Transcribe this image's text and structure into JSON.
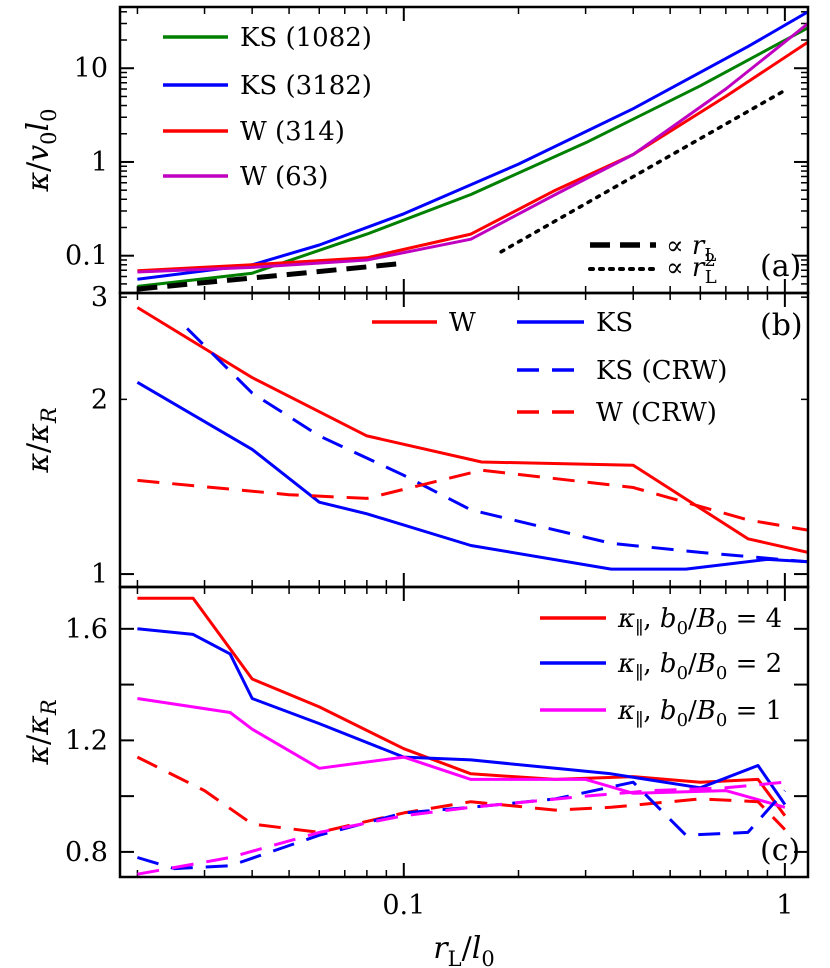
{
  "chart_data": {
    "type": "line",
    "xlabel": "r_L / l_0",
    "x_ticks": [
      {
        "v": 0.1,
        "label": "0.1"
      },
      {
        "v": 1,
        "label": "1"
      }
    ],
    "x_range": [
      0.018,
      1.15
    ],
    "x_scale": "log",
    "panels": [
      {
        "tag": "(a)",
        "ylabel": "κ / v_0 l_0",
        "y_scale": "log",
        "y_range": [
          0.04,
          45
        ],
        "y_ticks": [
          {
            "v": 0.1,
            "label": "0.1"
          },
          {
            "v": 1,
            "label": "1"
          },
          {
            "v": 10,
            "label": "10"
          }
        ],
        "legend_placement": "upper-left and lower-right",
        "series": [
          {
            "name": "KS (1082)",
            "color": "#008000",
            "dash": "solid",
            "x": [
              0.02,
              0.04,
              0.08,
              0.15,
              0.3,
              0.6,
              1.15
            ],
            "y": [
              0.047,
              0.065,
              0.17,
              0.45,
              1.6,
              6.5,
              27
            ]
          },
          {
            "name": "KS (3182)",
            "color": "#0000ff",
            "dash": "solid",
            "x": [
              0.02,
              0.04,
              0.06,
              0.1,
              0.2,
              0.4,
              0.8,
              1.15
            ],
            "y": [
              0.056,
              0.08,
              0.13,
              0.28,
              0.95,
              3.7,
              17,
              40
            ]
          },
          {
            "name": "W (314)",
            "color": "#ff0000",
            "dash": "solid",
            "x": [
              0.02,
              0.04,
              0.08,
              0.15,
              0.25,
              0.4,
              0.7,
              1.15
            ],
            "y": [
              0.069,
              0.08,
              0.095,
              0.17,
              0.5,
              1.2,
              5,
              19
            ]
          },
          {
            "name": "W (63)",
            "color": "#c000c0",
            "dash": "solid",
            "x": [
              0.02,
              0.04,
              0.08,
              0.15,
              0.25,
              0.4,
              0.7,
              1.15
            ],
            "y": [
              0.067,
              0.075,
              0.09,
              0.15,
              0.45,
              1.2,
              6,
              30
            ]
          },
          {
            "name": "∝ r_L",
            "color": "#000000",
            "dash": "dashed-thick",
            "x": [
              0.02,
              0.1
            ],
            "y": [
              0.044,
              0.083
            ]
          },
          {
            "name": "∝ r_L^2",
            "color": "#000000",
            "dash": "dotted",
            "x": [
              0.18,
              1.0
            ],
            "y": [
              0.11,
              5.8
            ]
          }
        ]
      },
      {
        "tag": "(b)",
        "ylabel": "κ / κ_R",
        "y_scale": "log",
        "y_range": [
          0.95,
          3.05
        ],
        "y_ticks": [
          {
            "v": 1,
            "label": "1"
          },
          {
            "v": 2,
            "label": "2"
          },
          {
            "v": 3,
            "label": "3"
          }
        ],
        "legend_placement": "top-right",
        "series": [
          {
            "name": "W",
            "color": "#ff0000",
            "dash": "solid",
            "x": [
              0.02,
              0.04,
              0.08,
              0.16,
              0.4,
              0.8,
              1.15
            ],
            "y": [
              2.88,
              2.18,
              1.73,
              1.56,
              1.54,
              1.15,
              1.09
            ]
          },
          {
            "name": "KS",
            "color": "#0000ff",
            "dash": "solid",
            "x": [
              0.02,
              0.04,
              0.06,
              0.08,
              0.15,
              0.35,
              0.55,
              0.9,
              1.15
            ],
            "y": [
              2.14,
              1.64,
              1.33,
              1.27,
              1.12,
              1.02,
              1.02,
              1.06,
              1.05
            ]
          },
          {
            "name": "KS (CRW)",
            "color": "#0000ff",
            "dash": "dashed",
            "x": [
              0.027,
              0.04,
              0.06,
              0.1,
              0.15,
              0.35,
              0.6,
              1.15
            ],
            "y": [
              2.65,
              2.05,
              1.73,
              1.48,
              1.29,
              1.13,
              1.09,
              1.05
            ]
          },
          {
            "name": "W (CRW)",
            "color": "#ff0000",
            "dash": "dashed",
            "x": [
              0.02,
              0.05,
              0.08,
              0.16,
              0.4,
              0.8,
              1.15
            ],
            "y": [
              1.45,
              1.37,
              1.35,
              1.51,
              1.41,
              1.24,
              1.19
            ]
          }
        ]
      },
      {
        "tag": "(c)",
        "ylabel": "κ / κ_R",
        "y_scale": "linear",
        "y_range": [
          0.71,
          1.75
        ],
        "y_ticks": [
          {
            "v": 0.8,
            "label": "0.8"
          },
          {
            "v": 1.2,
            "label": "1.2"
          },
          {
            "v": 1.6,
            "label": "1.6"
          }
        ],
        "legend_placement": "top-right",
        "series": [
          {
            "name": "κ_∥, b_0/B_0 = 4",
            "color": "#ff0000",
            "dash": "solid",
            "x": [
              0.02,
              0.028,
              0.04,
              0.06,
              0.1,
              0.15,
              0.25,
              0.4,
              0.6,
              0.85,
              1.0
            ],
            "y": [
              1.71,
              1.71,
              1.42,
              1.32,
              1.17,
              1.08,
              1.06,
              1.07,
              1.05,
              1.06,
              0.93
            ]
          },
          {
            "name": "κ_∥, b_0/B_0 = 2",
            "color": "#0000ff",
            "dash": "solid",
            "x": [
              0.02,
              0.028,
              0.035,
              0.04,
              0.06,
              0.1,
              0.15,
              0.25,
              0.35,
              0.6,
              0.85,
              1.0
            ],
            "y": [
              1.6,
              1.58,
              1.51,
              1.35,
              1.26,
              1.14,
              1.13,
              1.1,
              1.08,
              1.03,
              1.11,
              0.97
            ]
          },
          {
            "name": "κ_∥, b_0/B_0 = 1",
            "color": "#ff00ff",
            "dash": "solid",
            "x": [
              0.02,
              0.035,
              0.04,
              0.06,
              0.1,
              0.15,
              0.3,
              0.4,
              0.7,
              1.0
            ],
            "y": [
              1.35,
              1.3,
              1.24,
              1.1,
              1.14,
              1.06,
              1.06,
              1.01,
              1.02,
              0.96
            ]
          },
          {
            "name": "",
            "color": "#ff0000",
            "dash": "dashed",
            "x": [
              0.02,
              0.03,
              0.04,
              0.06,
              0.1,
              0.15,
              0.25,
              0.35,
              0.6,
              0.85,
              1.0
            ],
            "y": [
              1.14,
              1.02,
              0.9,
              0.87,
              0.94,
              0.98,
              0.95,
              0.96,
              0.99,
              0.98,
              0.88
            ]
          },
          {
            "name": "",
            "color": "#0000ff",
            "dash": "dashed",
            "x": [
              0.02,
              0.025,
              0.035,
              0.06,
              0.1,
              0.15,
              0.25,
              0.4,
              0.55,
              0.8,
              1.0
            ],
            "y": [
              0.78,
              0.74,
              0.75,
              0.86,
              0.94,
              0.96,
              0.99,
              1.05,
              0.86,
              0.87,
              1.02
            ]
          },
          {
            "name": "",
            "color": "#ff00ff",
            "dash": "dashed",
            "x": [
              0.02,
              0.035,
              0.06,
              0.1,
              0.15,
              0.3,
              0.45,
              0.7,
              1.0
            ],
            "y": [
              0.72,
              0.78,
              0.87,
              0.93,
              0.96,
              1.0,
              1.02,
              1.03,
              1.05
            ]
          }
        ]
      }
    ]
  }
}
